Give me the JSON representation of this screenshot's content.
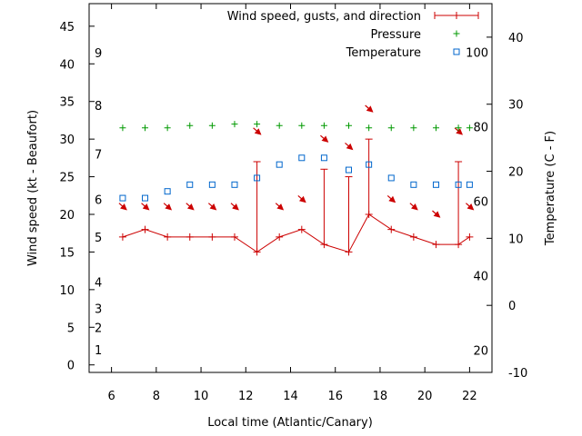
{
  "chart_data": {
    "type": "line",
    "xlabel": "Local time (Atlantic/Canary)",
    "ylabel_left": "Wind speed (kt - Beaufort)",
    "ylabel_right": "Temperature (C - F)",
    "xlim": [
      5,
      23
    ],
    "ylim_left": [
      -1,
      48
    ],
    "ylim_right": [
      -10,
      45
    ],
    "grid": false,
    "legend_position": "top-right",
    "x_ticks": [
      "6",
      "8",
      "10",
      "12",
      "14",
      "16",
      "18",
      "20",
      "22"
    ],
    "y_ticks_left": [
      "0",
      "5",
      "10",
      "15",
      "20",
      "25",
      "30",
      "35",
      "40",
      "45"
    ],
    "y_ticks_right": [
      "-10",
      "0",
      "10",
      "20",
      "30",
      "40"
    ],
    "beaufort_labels": [
      "1",
      "2",
      "3",
      "4",
      "5",
      "6",
      "7",
      "8",
      "9"
    ],
    "fahrenheit_labels": [
      "20",
      "40",
      "60",
      "80",
      "100"
    ],
    "legend": [
      {
        "label": "Wind speed, gusts, and direction",
        "color": "#cc0000",
        "marker": "line-plus"
      },
      {
        "label": "Pressure",
        "color": "#009900",
        "marker": "plus"
      },
      {
        "label": "Temperature",
        "color": "#0066cc",
        "marker": "square"
      }
    ],
    "series": [
      {
        "name": "Wind speed, gusts, and direction",
        "color": "#cc0000",
        "x": [
          6.5,
          7.5,
          8.5,
          9.5,
          10.5,
          11.5,
          12.5,
          13.5,
          14.5,
          15.5,
          16.6,
          17.5,
          18.5,
          19.5,
          20.5,
          21.5,
          22.0
        ],
        "y": [
          17,
          18,
          17,
          17,
          17,
          17,
          15,
          17,
          18,
          16,
          15,
          20,
          18,
          17,
          16,
          16,
          17
        ],
        "gusts": [
          null,
          null,
          null,
          null,
          null,
          null,
          27,
          null,
          null,
          26,
          25,
          30,
          null,
          null,
          null,
          27,
          null
        ],
        "direction_arrow_y": [
          21,
          21,
          21,
          21,
          21,
          21,
          31,
          21,
          22,
          30,
          29,
          34,
          22,
          21,
          20,
          31,
          21
        ]
      },
      {
        "name": "Pressure",
        "color": "#009900",
        "x": [
          6.5,
          7.5,
          8.5,
          9.5,
          10.5,
          11.5,
          12.5,
          13.5,
          14.5,
          15.5,
          16.6,
          17.5,
          18.5,
          19.5,
          20.5,
          21.5,
          22.0
        ],
        "y": [
          31.5,
          31.5,
          31.5,
          31.8,
          31.8,
          32.0,
          32.0,
          31.8,
          31.8,
          31.8,
          31.8,
          31.5,
          31.5,
          31.5,
          31.5,
          31.5,
          31.5
        ]
      },
      {
        "name": "Temperature",
        "color": "#0066cc",
        "x": [
          6.5,
          7.5,
          8.5,
          9.5,
          10.5,
          11.5,
          12.5,
          13.5,
          14.5,
          15.5,
          16.6,
          17.5,
          18.5,
          19.5,
          20.5,
          21.5,
          22.0
        ],
        "y": [
          16,
          16,
          17,
          18,
          18,
          18,
          19,
          21,
          22,
          22,
          20.2,
          21,
          19,
          18,
          18,
          18,
          18
        ]
      }
    ]
  }
}
